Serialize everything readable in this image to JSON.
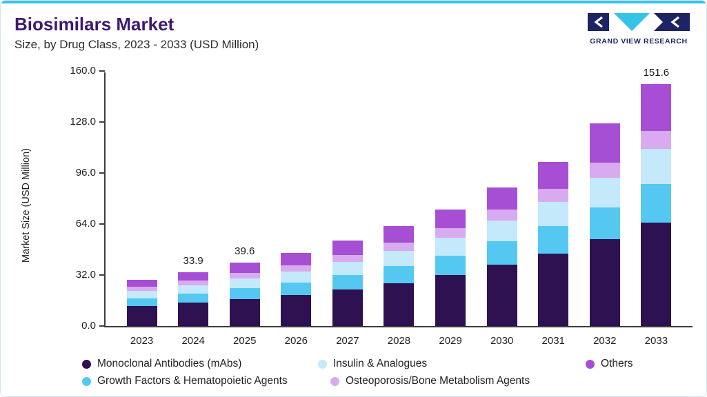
{
  "header": {
    "title": "Biosimilars Market",
    "subtitle": "Size, by Drug Class, 2023 - 2033 (USD Million)",
    "logo_text": "GRAND VIEW RESEARCH"
  },
  "colors": {
    "top_accent_bar": "#37c3e8",
    "title_text": "#3d1970",
    "axis": "#3c3c3c",
    "logo_navy": "#1e2366",
    "logo_cyan": "#35c4e8"
  },
  "chart_data": {
    "type": "bar",
    "stacked": true,
    "title": "Biosimilars Market Size, by Drug Class, 2023 - 2033 (USD Million)",
    "xlabel": "",
    "ylabel": "Market Size (USD Million)",
    "ylim": [
      0,
      160
    ],
    "yticks": [
      0.0,
      32.0,
      64.0,
      96.0,
      128.0,
      160.0
    ],
    "grid": false,
    "legend_position": "bottom",
    "categories": [
      "2023",
      "2024",
      "2025",
      "2026",
      "2027",
      "2028",
      "2029",
      "2030",
      "2031",
      "2032",
      "2033"
    ],
    "series": [
      {
        "name": "Monoclonal Antibodies (mAbs)",
        "color": "#2d1150",
        "values": [
          12.5,
          14.5,
          17.0,
          19.5,
          23.0,
          27.0,
          32.0,
          38.5,
          45.5,
          54.5,
          65.0
        ]
      },
      {
        "name": "Growth Factors & Hematopoietic Agents",
        "color": "#55c8f2",
        "values": [
          5.0,
          5.8,
          6.7,
          7.8,
          9.0,
          10.5,
          12.3,
          14.5,
          17.0,
          20.0,
          24.0
        ]
      },
      {
        "name": "Insulin & Analogues",
        "color": "#c3e9fb",
        "values": [
          4.5,
          5.2,
          6.0,
          7.0,
          8.2,
          9.5,
          11.0,
          13.0,
          15.5,
          18.5,
          22.0
        ]
      },
      {
        "name": "Osteoporosis/Bone Metabolism Agents",
        "color": "#d8abf0",
        "values": [
          2.5,
          2.9,
          3.4,
          3.9,
          4.5,
          5.2,
          6.0,
          7.0,
          8.0,
          9.5,
          11.6
        ]
      },
      {
        "name": "Others",
        "color": "#a64fd4",
        "values": [
          4.5,
          5.5,
          6.5,
          7.5,
          8.8,
          10.3,
          12.0,
          14.0,
          17.0,
          24.5,
          29.0
        ]
      }
    ],
    "value_labels": {
      "2024": "33.9",
      "2025": "39.6",
      "2033": "151.6"
    },
    "legend_rows": [
      [
        0,
        2,
        4
      ],
      [
        1,
        3
      ]
    ]
  }
}
